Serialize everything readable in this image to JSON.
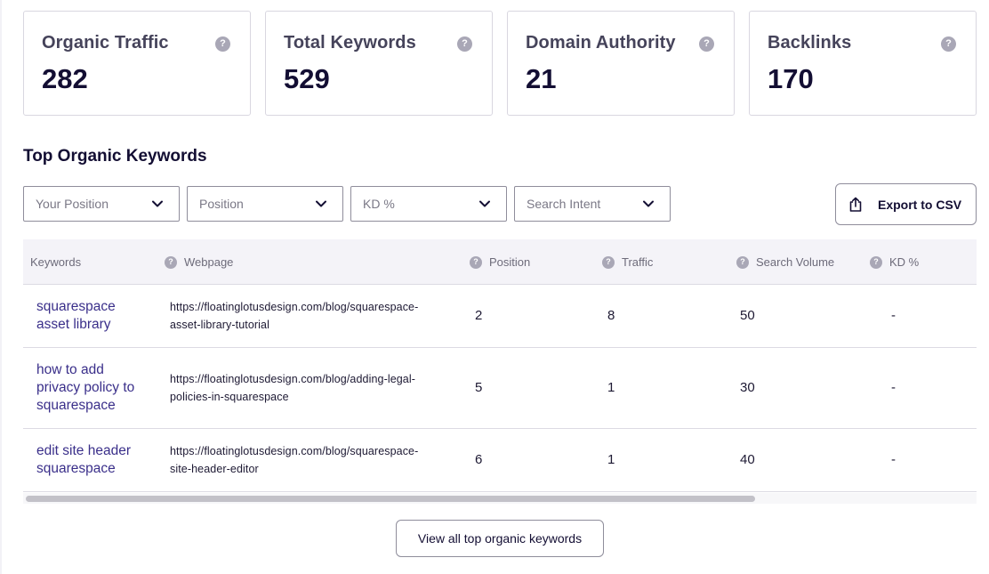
{
  "metrics": [
    {
      "title": "Organic Traffic",
      "value": "282"
    },
    {
      "title": "Total Keywords",
      "value": "529"
    },
    {
      "title": "Domain Authority",
      "value": "21"
    },
    {
      "title": "Backlinks",
      "value": "170"
    }
  ],
  "help_glyph": "?",
  "section_title": "Top Organic Keywords",
  "filters": [
    "Your Position",
    "Position",
    "KD %",
    "Search Intent"
  ],
  "export_label": "Export to CSV",
  "table": {
    "columns": [
      "Keywords",
      "Webpage",
      "Position",
      "Traffic",
      "Search Volume",
      "KD %"
    ],
    "rows": [
      {
        "keyword_lines": [
          "squarespace",
          "asset library"
        ],
        "url_lines": [
          "https://floatinglotusdesign.com/blog/squarespace-",
          "asset-library-tutorial"
        ],
        "position": "2",
        "traffic": "8",
        "volume": "50",
        "kd": "-"
      },
      {
        "keyword_lines": [
          "how to add",
          "privacy policy to",
          "squarespace"
        ],
        "url_lines": [
          "https://floatinglotusdesign.com/blog/adding-legal-",
          "policies-in-squarespace"
        ],
        "position": "5",
        "traffic": "1",
        "volume": "30",
        "kd": "-"
      },
      {
        "keyword_lines": [
          "edit site header",
          "squarespace"
        ],
        "url_lines": [
          "https://floatinglotusdesign.com/blog/squarespace-",
          "site-header-editor"
        ],
        "position": "6",
        "traffic": "1",
        "volume": "40",
        "kd": "-"
      }
    ]
  },
  "view_all_label": "View all top organic keywords",
  "colors": {
    "accent": "#3a2f8a",
    "heading": "#130e33",
    "help_icon": "#a9a7b6"
  }
}
